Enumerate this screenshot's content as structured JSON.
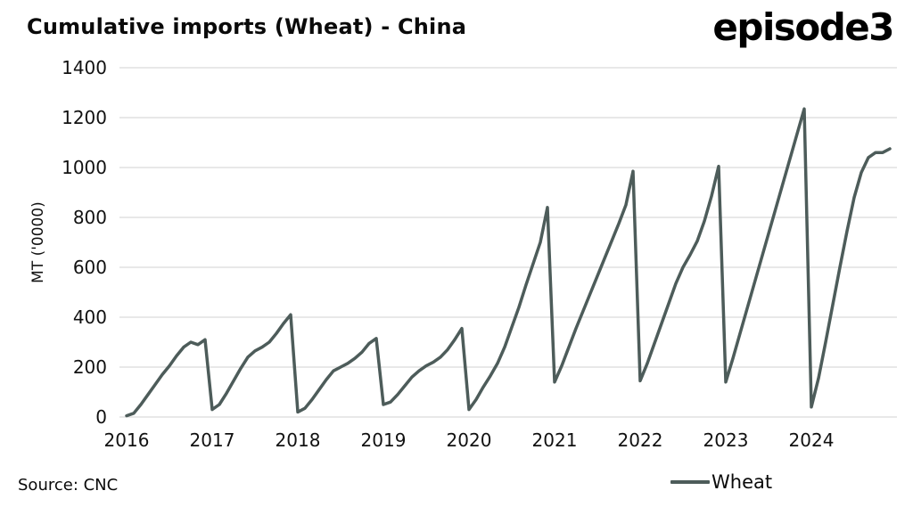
{
  "header": {
    "title": "Cumulative imports (Wheat) - China",
    "logo": "episode3"
  },
  "footer": {
    "source": "Source: CNC",
    "legend_label": "Wheat"
  },
  "chart_data": {
    "type": "line",
    "title": "Cumulative imports (Wheat) - China",
    "xlabel": "",
    "ylabel": "MT ('0000)",
    "ylim": [
      0,
      1400
    ],
    "xlim": [
      2016,
      2025
    ],
    "y_ticks": [
      0,
      200,
      400,
      600,
      800,
      1000,
      1200,
      1400
    ],
    "x_ticks": [
      2016,
      2017,
      2018,
      2019,
      2020,
      2021,
      2022,
      2023,
      2024
    ],
    "grid": "horizontal",
    "legend_position": "bottom",
    "colors": {
      "line": "#4d5c5a",
      "grid": "#d9d9d9",
      "text": "#111111"
    },
    "series": [
      {
        "name": "Wheat",
        "x_start_year": 2016,
        "x_step_months": 1,
        "values": [
          5,
          15,
          50,
          90,
          130,
          170,
          205,
          245,
          280,
          300,
          290,
          310,
          30,
          50,
          95,
          145,
          195,
          240,
          265,
          280,
          300,
          335,
          375,
          410,
          20,
          35,
          70,
          110,
          150,
          185,
          200,
          215,
          235,
          260,
          295,
          315,
          50,
          60,
          90,
          125,
          160,
          185,
          205,
          220,
          240,
          270,
          310,
          355,
          30,
          70,
          120,
          165,
          215,
          280,
          360,
          440,
          530,
          615,
          700,
          840,
          140,
          205,
          280,
          355,
          425,
          495,
          565,
          635,
          705,
          775,
          850,
          985,
          145,
          215,
          295,
          375,
          455,
          535,
          600,
          650,
          705,
          785,
          885,
          1005,
          140,
          235,
          335,
          435,
          535,
          635,
          735,
          835,
          935,
          1035,
          1135,
          1235,
          40,
          155,
          300,
          450,
          600,
          745,
          880,
          980,
          1040,
          1060,
          1060,
          1075
        ]
      }
    ]
  }
}
